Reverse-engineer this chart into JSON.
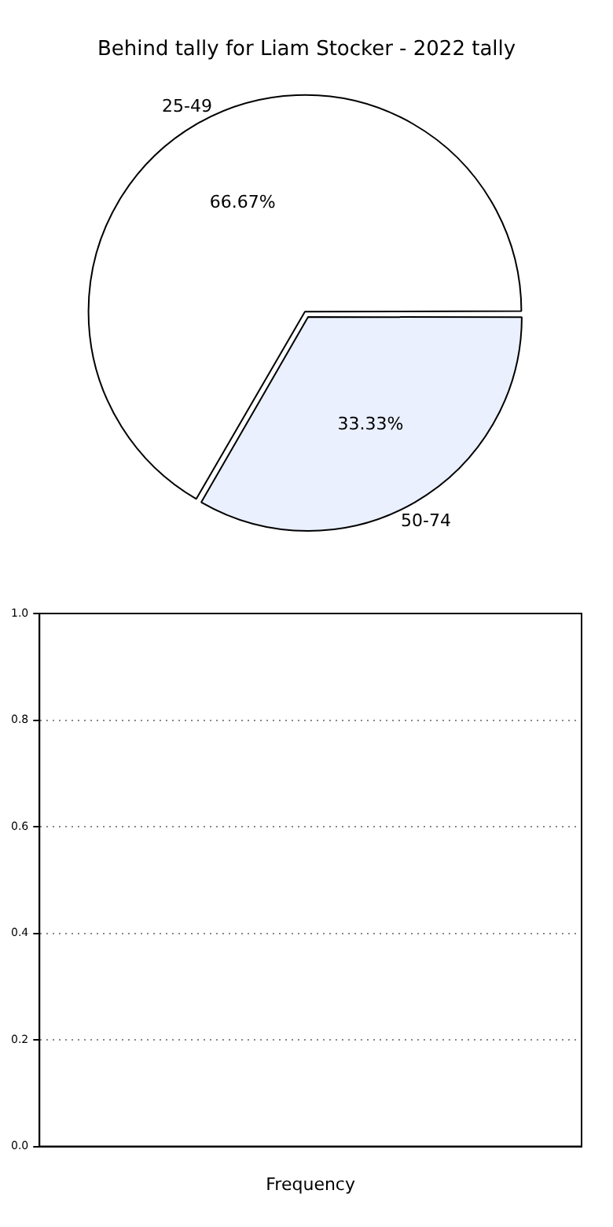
{
  "chart_data": [
    {
      "type": "pie",
      "title": "Behind tally for Liam Stocker - 2022 tally",
      "categories": [
        "25-49",
        "50-74"
      ],
      "values": [
        66.67,
        33.33
      ],
      "colors": [
        "#ffffff",
        "#eaf0fe"
      ],
      "value_labels": [
        "66.67%",
        "33.33%"
      ],
      "legend": false
    },
    {
      "type": "bar",
      "xlabel": "Frequency",
      "categories": [
        null
      ],
      "values": [
        null
      ],
      "ylim": [
        0,
        1
      ],
      "yticks": [
        {
          "value": 0,
          "label": "0.0"
        },
        {
          "value": 0.2,
          "label": "0.2"
        },
        {
          "value": 0.4,
          "label": "0.4"
        },
        {
          "value": 0.6,
          "label": "0.6"
        },
        {
          "value": 0.8,
          "label": "0.8"
        },
        {
          "value": 1,
          "label": "1.0"
        }
      ],
      "grid": "y",
      "legend": false
    }
  ]
}
